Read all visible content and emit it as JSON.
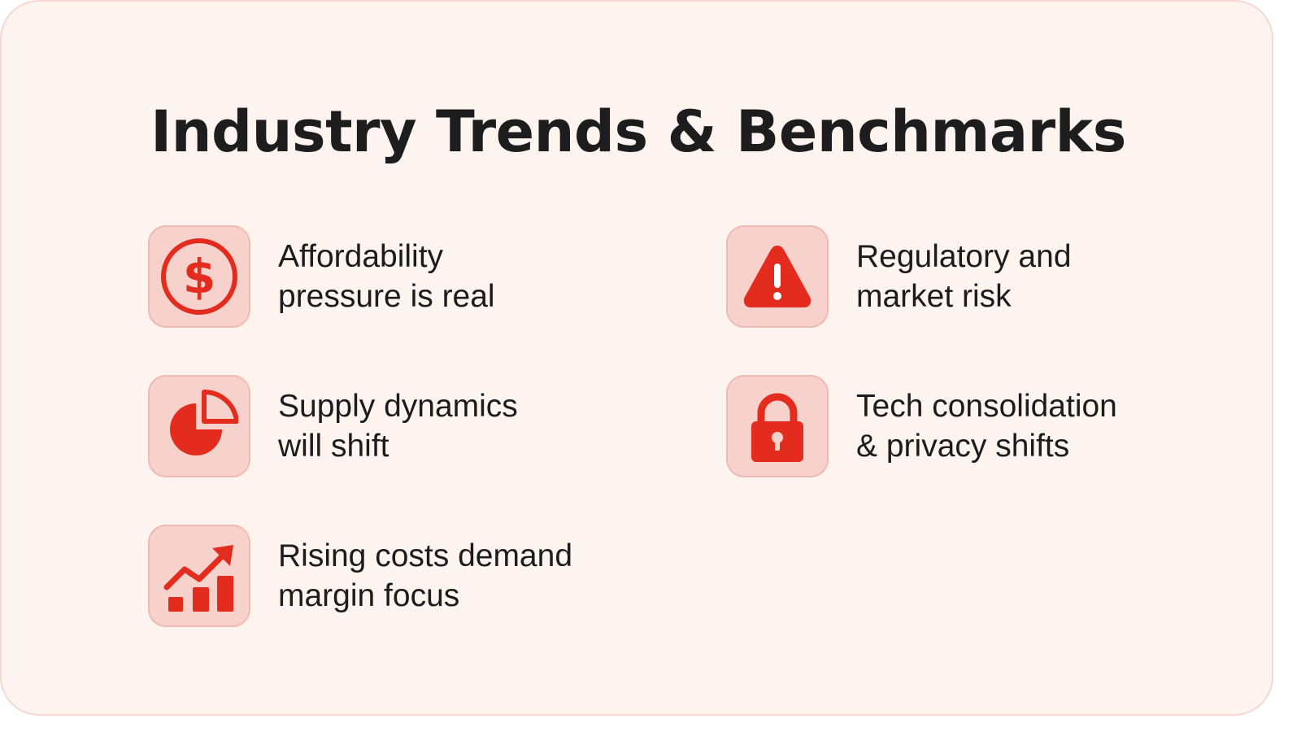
{
  "title": "Industry Trends & Benchmarks",
  "accent_color": "#e32c1e",
  "tile_color": "#f7d1cb",
  "items": [
    {
      "icon": "dollar-circle-icon",
      "line1": "Affordability",
      "line2": "pressure is real"
    },
    {
      "icon": "warning-triangle-icon",
      "line1": "Regulatory and",
      "line2": "market risk"
    },
    {
      "icon": "pie-chart-icon",
      "line1": "Supply dynamics",
      "line2": "will shift"
    },
    {
      "icon": "padlock-icon",
      "line1": "Tech consolidation",
      "line2": "& privacy shifts"
    },
    {
      "icon": "growth-chart-icon",
      "line1": "Rising costs demand",
      "line2": "margin focus"
    }
  ]
}
